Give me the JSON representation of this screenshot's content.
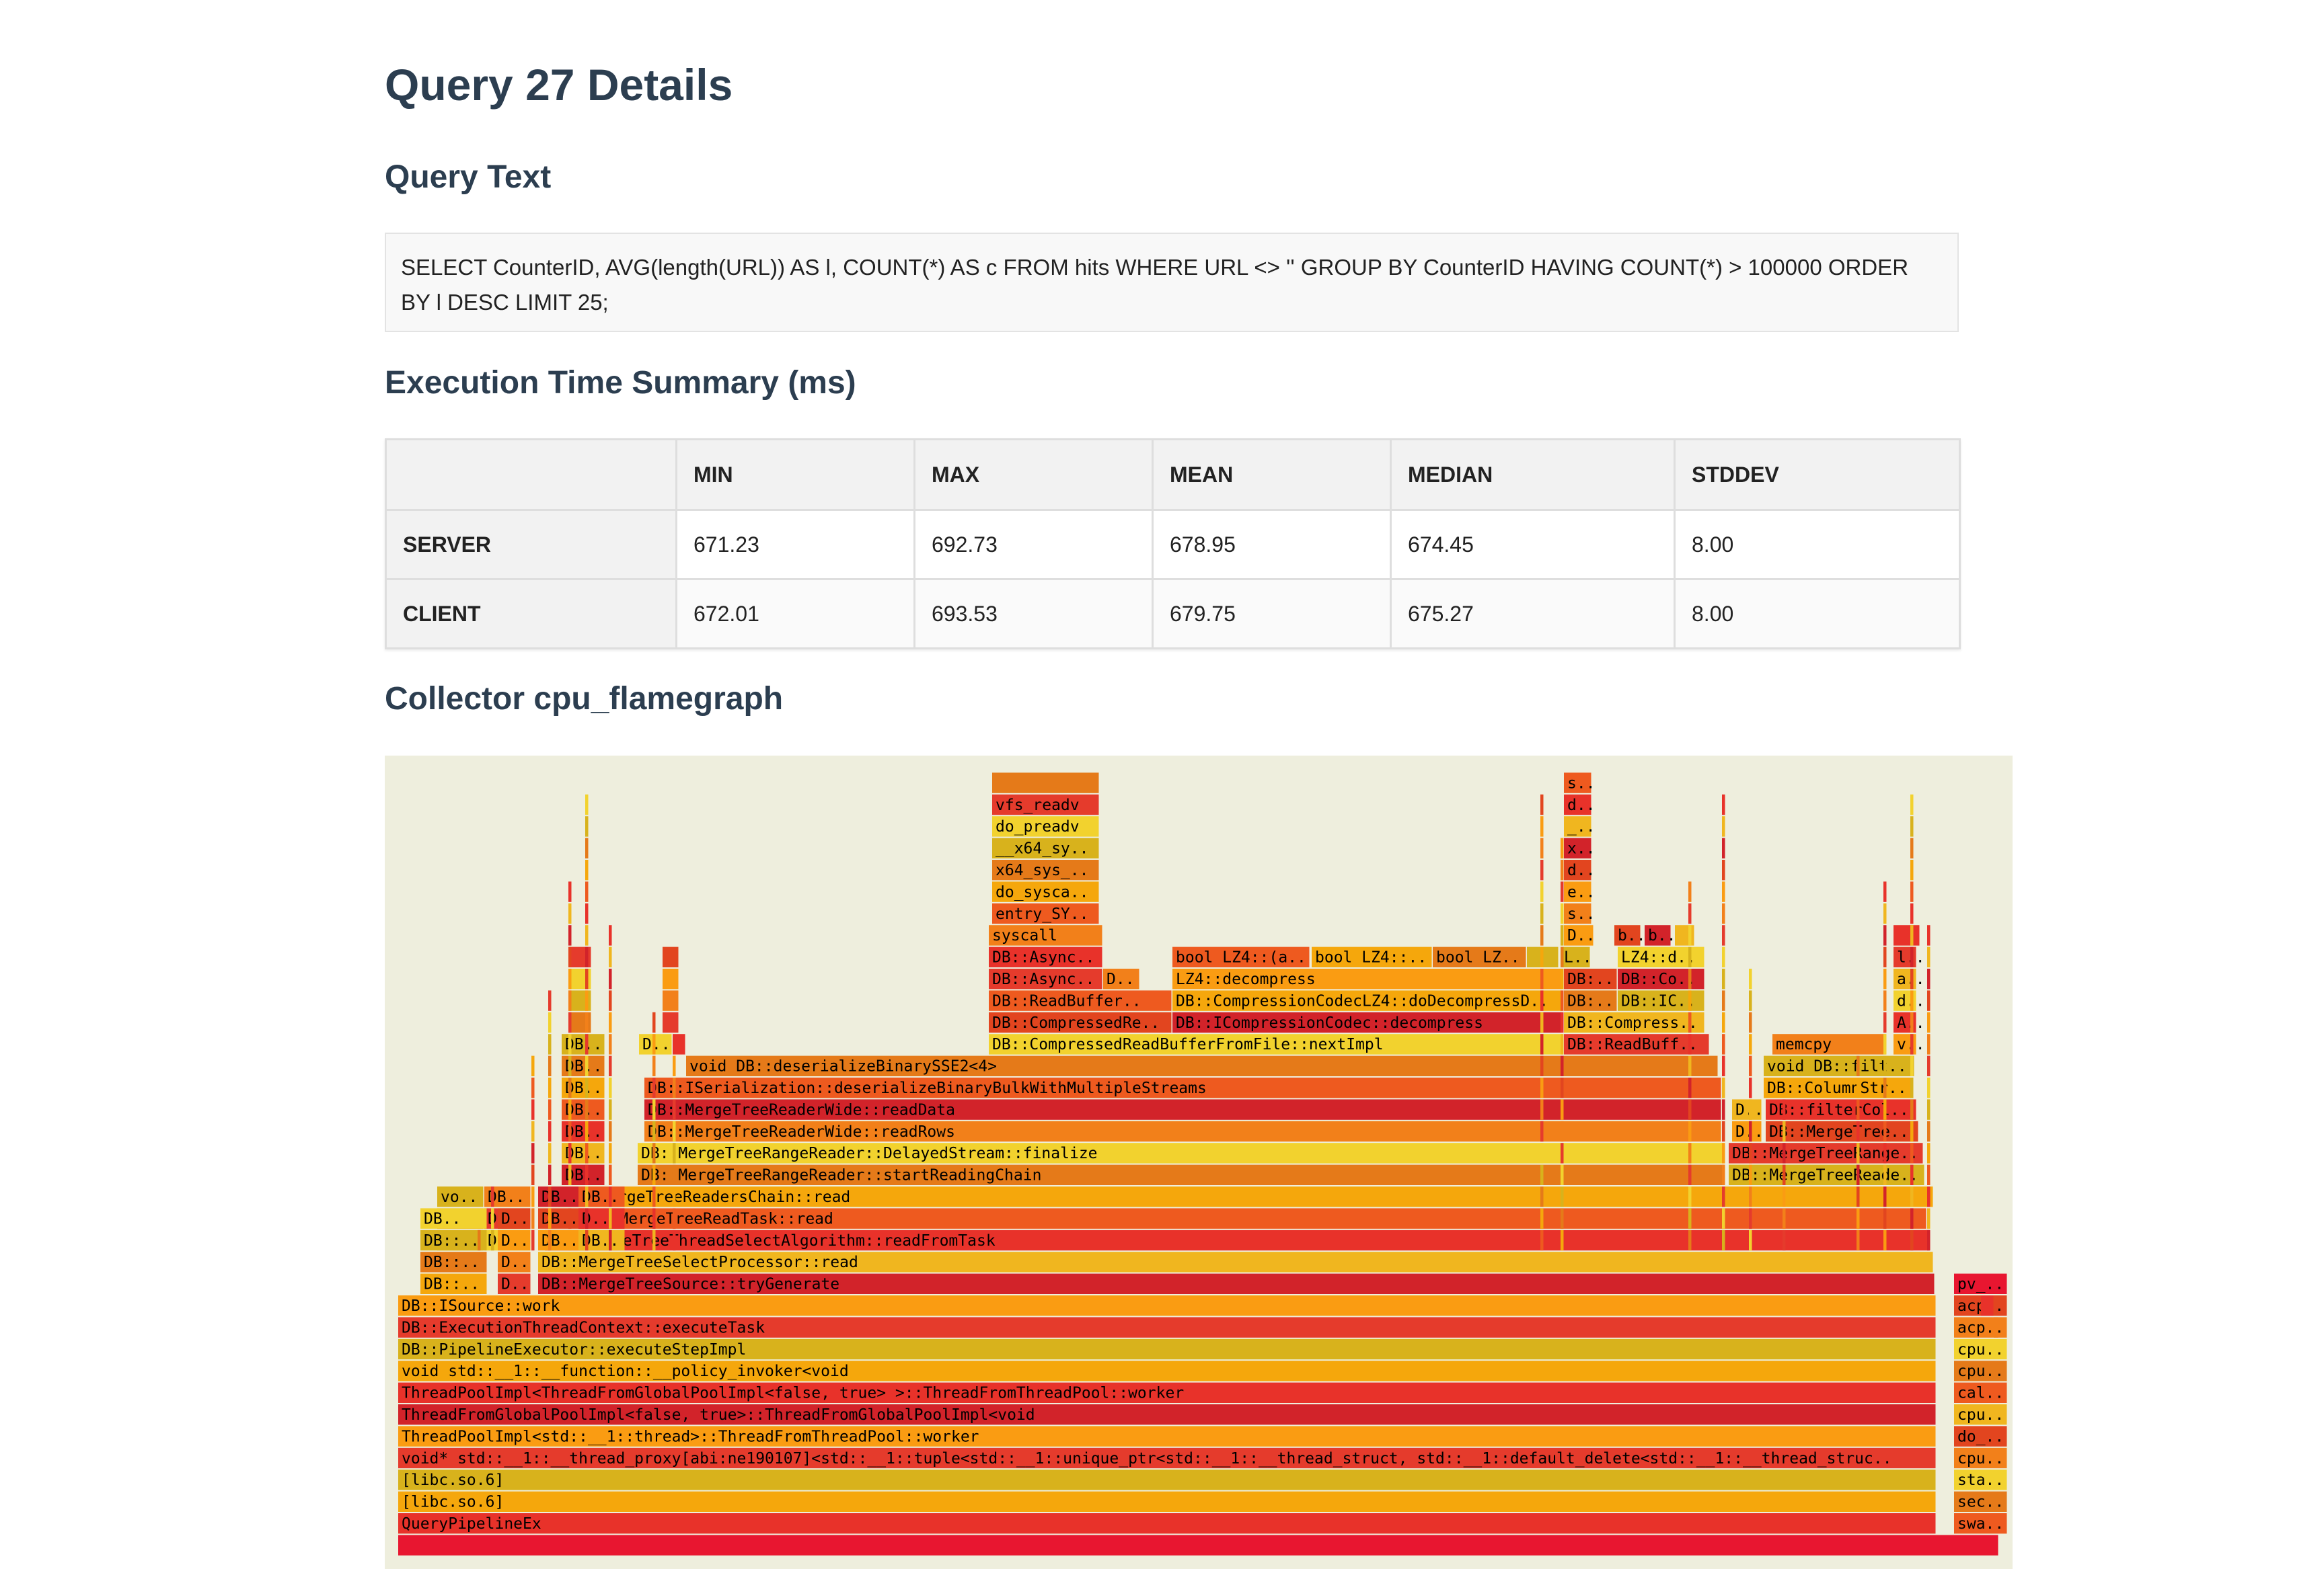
{
  "page_title": "Query 27 Details",
  "query_section": {
    "heading": "Query Text",
    "text": "SELECT CounterID, AVG(length(URL)) AS l, COUNT(*) AS c FROM hits WHERE URL <> '' GROUP BY CounterID HAVING COUNT(*) > 100000 ORDER BY l DESC LIMIT 25;"
  },
  "summary_section": {
    "heading": "Execution Time Summary (ms)",
    "columns": [
      "",
      "MIN",
      "MAX",
      "MEAN",
      "MEDIAN",
      "STDDEV"
    ],
    "rows": [
      {
        "label": "SERVER",
        "values": [
          "671.23",
          "692.73",
          "678.95",
          "674.45",
          "8.00"
        ]
      },
      {
        "label": "CLIENT",
        "values": [
          "672.01",
          "693.53",
          "679.75",
          "675.27",
          "8.00"
        ]
      }
    ]
  },
  "flamegraph_section": {
    "heading": "Collector cpu_flamegraph",
    "stack_frames": [
      [
        "QueryPipelineEx",
        "swa.."
      ],
      [
        "[libc.so.6]",
        "sec.."
      ],
      [
        "[libc.so.6]",
        "sta.."
      ],
      [
        "void* std::__1::__thread_proxy[abi:ne190107]<std::__1::tuple<std::__1::unique_ptr<std::__1::__thread_struct, std::__1::default_delete<std::__1::__thread_struc..",
        "cpu.."
      ],
      [
        "ThreadPoolImpl<std::__1::thread>::ThreadFromThreadPool::worker",
        "do_.."
      ],
      [
        "ThreadFromGlobalPoolImpl<false, true>::ThreadFromGlobalPoolImpl<void",
        "cpu.."
      ],
      [
        "ThreadPoolImpl<ThreadFromGlobalPoolImpl<false, true> >::ThreadFromThreadPool::worker",
        "cal.."
      ],
      [
        "void std::__1::__function::__policy_invoker<void",
        "cpu.."
      ],
      [
        "DB::PipelineExecutor::executeStepImpl",
        "cpu.."
      ],
      [
        "DB::ExecutionThreadContext::executeTask",
        "acp.."
      ],
      [
        "DB::ISource::work",
        "acp.."
      ],
      [
        "DB::MergeTreeSource::tryGenerate",
        "pv_.."
      ],
      [
        "DB::MergeTreeSelectProcessor::read"
      ],
      [
        "DB::MergeTreeThreadSelectAlgorithm::readFromTask"
      ],
      [
        "DB::MergeTreeReadTask::read"
      ],
      [
        "DB::MergeTreeReadersChain::read"
      ],
      [
        "DB::MergeTreeRangeReader::startReadingChain",
        "DB::MergeTreeReader.."
      ],
      [
        "DB::MergeTreeRangeReader::DelayedStream::finalize",
        "DB::MergeTreeRange.."
      ],
      [
        "DB::MergeTreeReaderWide::readRows",
        "D..",
        "DB::MergeTreeRa.."
      ],
      [
        "DB::MergeTreeReaderWide::readData",
        "D..",
        "DB::filterColumns"
      ],
      [
        "DB::ISerialization::deserializeBinaryBulkWithMultipleStreams",
        "DB::ColumnStri.."
      ],
      [
        "void DB::deserializeBinarySSE2<4>",
        "void DB::filte.."
      ],
      [
        "DB::CompressedReadBufferFromFile::nextImpl",
        "DB::ReadBuffe..",
        "memcpy",
        "v.."
      ],
      [
        "DB::CompressedRea..",
        "DB::ICompressionCodec::decompress",
        "DB::Compresse..",
        "A.."
      ],
      [
        "DB::ReadBuffer..",
        "DB::CompressionCodecLZ4::doDecompressD..",
        "DB::..",
        "DB::ICo..",
        "d.."
      ],
      [
        "DB::Asynch..",
        "LZ4::decompress",
        "DB::..",
        "DB::Com..",
        "a.."
      ],
      [
        "DB::Asynch..",
        "bool LZ4::(a..",
        "bool LZ4::..",
        "bool LZ..",
        "LZ4::de..",
        "l.."
      ],
      [
        "syscall",
        "D..",
        "b..",
        "b.."
      ],
      [
        "entry_SYS..",
        "do_syscal..",
        "x64_sys_c..",
        "__x64_sys..",
        "do_preadv",
        "vfs_readv"
      ]
    ],
    "small_frames": [
      "voi..",
      "voi..",
      "voi..",
      "DB::..",
      "DB::A..",
      "DB::A..",
      "DB::A..",
      "DB..",
      "DB..",
      "DB..",
      "D..",
      "DB::..",
      "DB::..",
      "DB::..",
      "DB::..",
      "DB::..",
      "DB::..",
      "DB..",
      "D..",
      "D..",
      "m..",
      "D..",
      "s..",
      "e..",
      "d..",
      "x..",
      "__..",
      "d.."
    ]
  }
}
